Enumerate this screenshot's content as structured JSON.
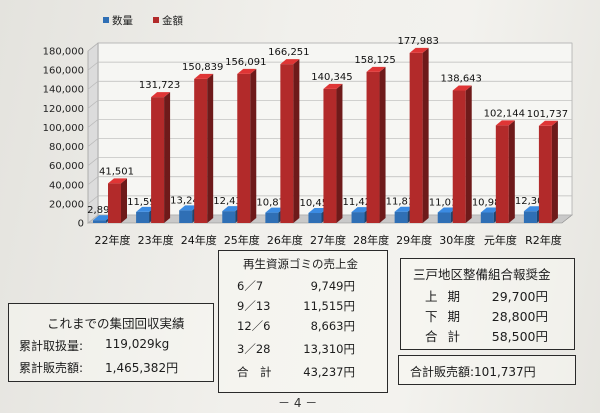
{
  "chart_data": {
    "type": "bar",
    "categories": [
      "22年度",
      "23年度",
      "24年度",
      "25年度",
      "26年度",
      "27年度",
      "28年度",
      "29年度",
      "30年度",
      "元年度",
      "R2年度"
    ],
    "series": [
      {
        "name": "数量",
        "color": "#2f6fb5",
        "values": [
          2890,
          11590,
          13247,
          12436,
          10874,
          10458,
          11426,
          11818,
          11010,
          10980,
          12300
        ]
      },
      {
        "name": "金額",
        "color": "#b22a2a",
        "values": [
          41501,
          131723,
          150839,
          156091,
          166251,
          140345,
          158125,
          177983,
          138643,
          102144,
          101737
        ]
      }
    ],
    "value_labels": {
      "数量": [
        "2,890",
        "11,590",
        "13,247",
        "12,436",
        "10,874",
        "10,458",
        "11,426",
        "11,818",
        "11,010",
        "10,980",
        "12,300"
      ],
      "金額": [
        "41,501",
        "131,723",
        "150,839",
        "156,091",
        "166,251",
        "140,345",
        "158,125",
        "177,983",
        "138,643",
        "102,144",
        "101,737"
      ]
    },
    "yticks": [
      "0",
      "20,000",
      "40,000",
      "60,000",
      "80,000",
      "100,000",
      "120,000",
      "140,000",
      "160,000",
      "180,000"
    ],
    "ylim": [
      0,
      180000
    ],
    "grid": true,
    "legend": "top-left"
  },
  "cumulative": {
    "title": "これまでの集団回収実績",
    "volume_label": "累計取扱量:",
    "volume_value": "119,029kg",
    "sales_label": "累計販売額:",
    "sales_value": "1,465,382円"
  },
  "recycle_sales": {
    "title": "再生資源ゴミの売上金",
    "rows": [
      {
        "date": "6／7",
        "amount": "9,749円"
      },
      {
        "date": "9／13",
        "amount": "11,515円"
      },
      {
        "date": "12／6",
        "amount": "8,663円"
      },
      {
        "date": "3／28",
        "amount": "13,310円"
      }
    ],
    "total_label": "合　計",
    "total_amount": "43,237円"
  },
  "subsidy": {
    "title": "三戸地区整備組合報奨金",
    "rows": [
      {
        "period": "上期",
        "amount": "29,700円"
      },
      {
        "period": "下期",
        "amount": "28,800円"
      },
      {
        "period": "合計",
        "amount": "58,500円"
      }
    ]
  },
  "total_sales": "合計販売額:101,737円",
  "page_number": "－ 4 －"
}
